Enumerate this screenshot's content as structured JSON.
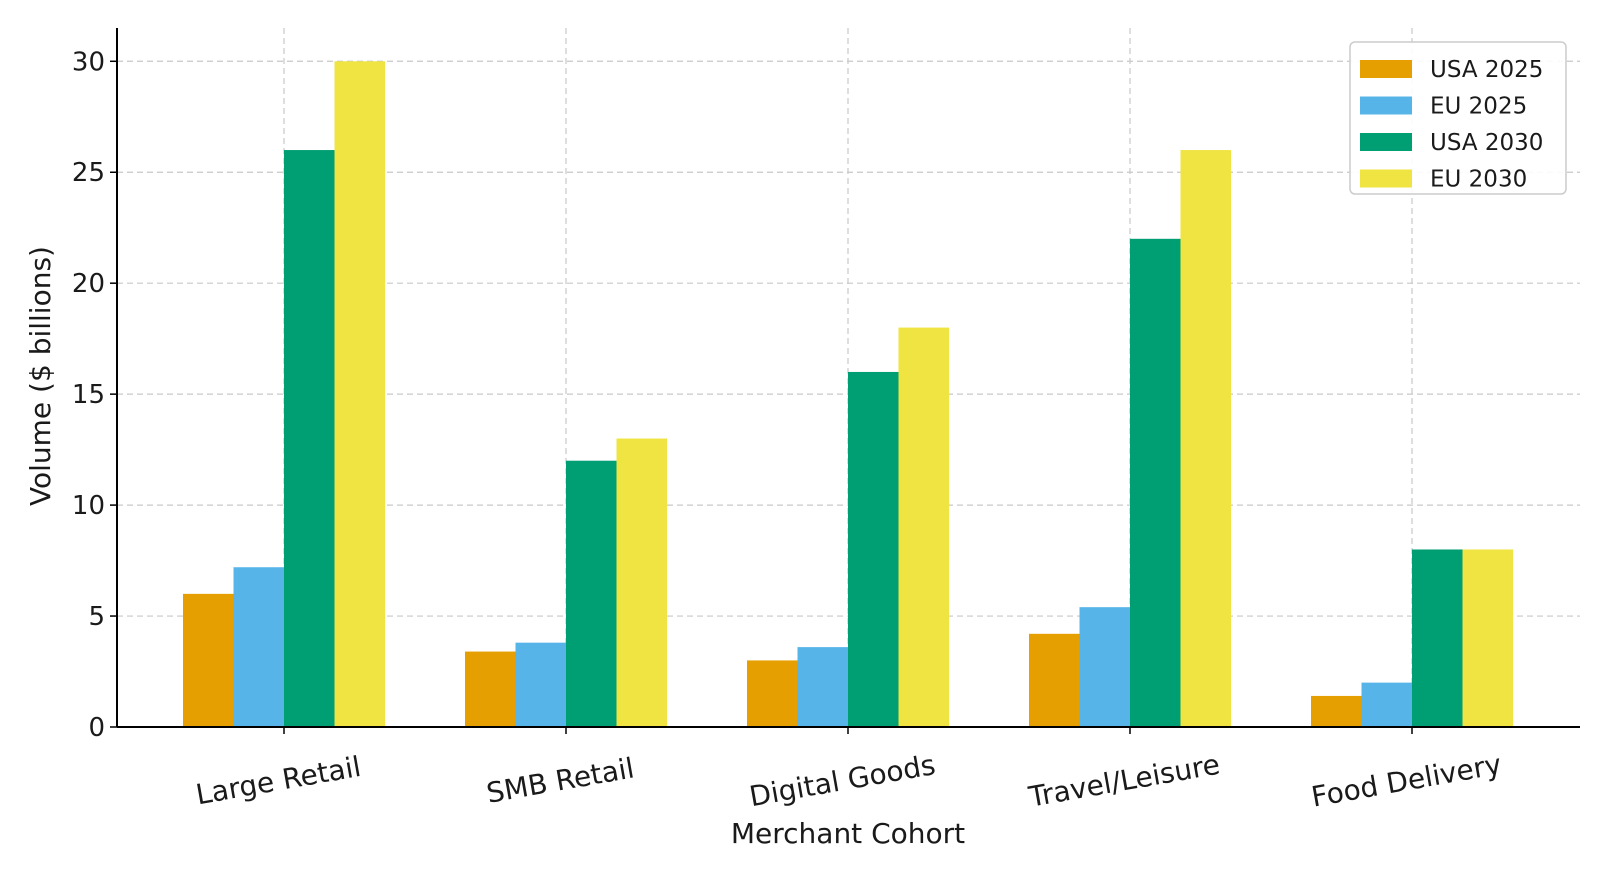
{
  "chart_data": {
    "type": "bar",
    "title": "",
    "xlabel": "Merchant Cohort",
    "ylabel": "Volume ($ billions)",
    "categories": [
      "Large Retail",
      "SMB Retail",
      "Digital Goods",
      "Travel/Leisure",
      "Food Delivery"
    ],
    "series": [
      {
        "name": "USA 2025",
        "color": "#E69F00",
        "values": [
          6.0,
          3.4,
          3.0,
          4.2,
          1.4
        ]
      },
      {
        "name": "EU 2025",
        "color": "#56B4E9",
        "values": [
          7.2,
          3.8,
          3.6,
          5.4,
          2.0
        ]
      },
      {
        "name": "USA 2030",
        "color": "#009E73",
        "values": [
          26,
          12,
          16,
          22,
          8
        ]
      },
      {
        "name": "EU 2030",
        "color": "#F0E442",
        "values": [
          30,
          13,
          18,
          26,
          8
        ]
      }
    ],
    "ylim": [
      0,
      31.5
    ],
    "yticks": [
      0,
      5,
      10,
      15,
      20,
      25,
      30
    ],
    "grid": true,
    "legend_position": "top-right"
  }
}
